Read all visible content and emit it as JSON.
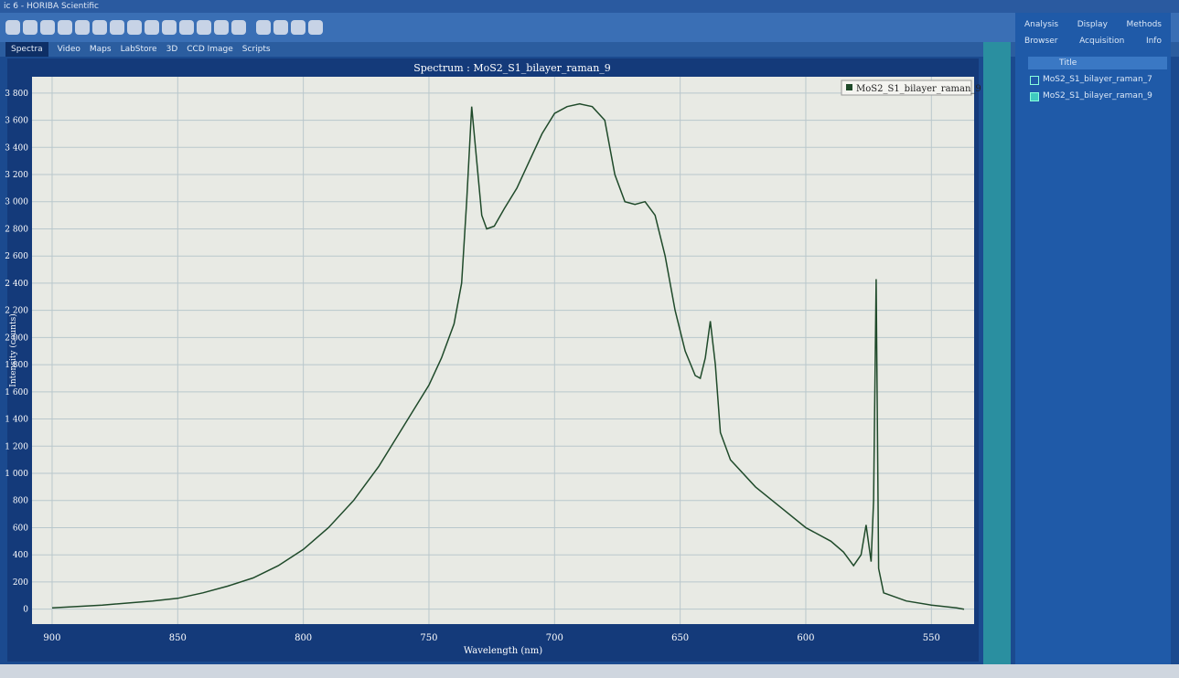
{
  "window": {
    "title": "ic 6 - HORIBA Scientific",
    "tabs": [
      "Spectra",
      "Video",
      "Maps",
      "LabStore",
      "3D",
      "CCD Image",
      "Scripts"
    ],
    "right_tabs_top": [
      "Analysis",
      "Display",
      "Methods"
    ],
    "right_tabs_bottom": [
      "Browser",
      "Acquisition",
      "Info"
    ],
    "browser_header": "Title",
    "browser_items": [
      "MoS2_S1_bilayer_raman_7",
      "MoS2_S1_bilayer_raman_9"
    ]
  },
  "chart_data": {
    "type": "line",
    "title": "Spectrum : MoS2_S1_bilayer_raman_9",
    "x_label": "Wavelength (nm)",
    "y_label": "Intensity (counts)",
    "x": [
      900,
      880,
      860,
      850,
      840,
      830,
      820,
      810,
      800,
      790,
      780,
      770,
      760,
      750,
      745,
      740,
      737,
      735,
      733,
      731,
      729,
      727,
      724,
      720,
      715,
      710,
      705,
      700,
      695,
      690,
      685,
      680,
      676,
      672,
      668,
      664,
      660,
      656,
      652,
      648,
      644,
      642,
      640,
      638,
      636,
      634,
      630,
      620,
      610,
      600,
      590,
      585,
      581,
      578,
      576,
      574,
      573,
      572,
      571,
      569,
      560,
      550,
      540,
      537
    ],
    "series": [
      {
        "name": "MoS2_S1_bilayer_raman_9",
        "color": "#1f4a2a",
        "values": [
          10,
          30,
          60,
          80,
          120,
          170,
          230,
          320,
          440,
          600,
          800,
          1050,
          1350,
          1650,
          1850,
          2100,
          2400,
          3000,
          3700,
          3300,
          2900,
          2800,
          2820,
          2950,
          3100,
          3300,
          3500,
          3650,
          3700,
          3720,
          3700,
          3600,
          3200,
          3000,
          2980,
          3000,
          2900,
          2600,
          2200,
          1900,
          1720,
          1700,
          1850,
          2120,
          1800,
          1300,
          1100,
          900,
          750,
          600,
          500,
          420,
          320,
          400,
          620,
          350,
          800,
          2430,
          300,
          120,
          60,
          30,
          10,
          0
        ]
      }
    ],
    "xlim": [
      908,
      533
    ],
    "ylim": [
      -110,
      3920
    ],
    "xticks": [
      900,
      850,
      800,
      750,
      700,
      650,
      600,
      550
    ],
    "yticks": [
      0,
      200,
      400,
      600,
      800,
      {
        "value": 1000,
        "label": "1 000"
      },
      {
        "value": 1200,
        "label": "1 200"
      },
      {
        "value": 1400,
        "label": "1 400"
      },
      {
        "value": 1600,
        "label": "1 600"
      },
      {
        "value": 1800,
        "label": "1 800"
      },
      {
        "value": 2000,
        "label": "2 000"
      },
      {
        "value": 2200,
        "label": "2 200"
      },
      {
        "value": 2400,
        "label": "2 400"
      },
      {
        "value": 2600,
        "label": "2 600"
      },
      {
        "value": 2800,
        "label": "2 800"
      },
      {
        "value": 3000,
        "label": "3 000"
      },
      {
        "value": 3200,
        "label": "3 200"
      },
      {
        "value": 3400,
        "label": "3 400"
      },
      {
        "value": 3600,
        "label": "3 600"
      },
      {
        "value": 3800,
        "label": "3 800"
      }
    ],
    "grid": true,
    "legend": "top-right"
  }
}
